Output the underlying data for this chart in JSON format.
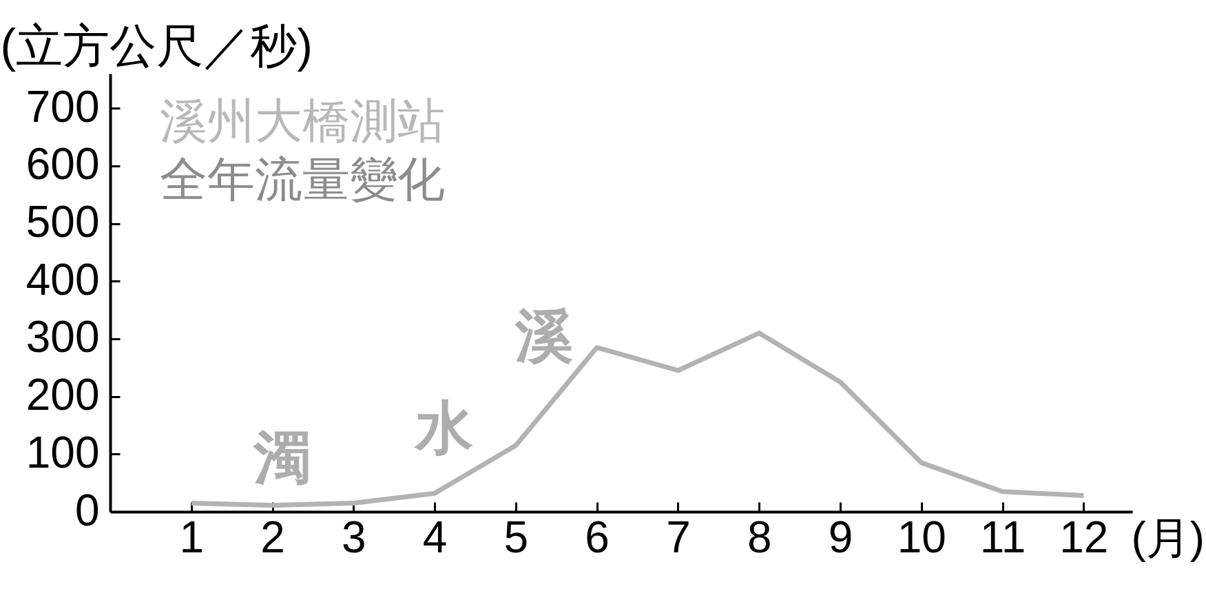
{
  "chart_data": {
    "type": "line",
    "title": "溪州大橋測站",
    "subtitle": "全年流量變化",
    "ylabel": "(立方公尺／秒)",
    "xlabel": "(月)",
    "x": [
      1,
      2,
      3,
      4,
      5,
      6,
      7,
      8,
      9,
      10,
      11,
      12
    ],
    "values": [
      15,
      11,
      15,
      32,
      115,
      285,
      245,
      310,
      225,
      85,
      35,
      28
    ],
    "color": "#b3b3b3",
    "xlim": [
      0,
      12.6
    ],
    "ylim": [
      0,
      760
    ],
    "xticks": [
      1,
      2,
      3,
      4,
      5,
      6,
      7,
      8,
      9,
      10,
      11,
      12
    ],
    "yticks": [
      0,
      100,
      200,
      300,
      400,
      500,
      600,
      700
    ],
    "annotations": [
      "濁",
      "水",
      "溪"
    ]
  }
}
